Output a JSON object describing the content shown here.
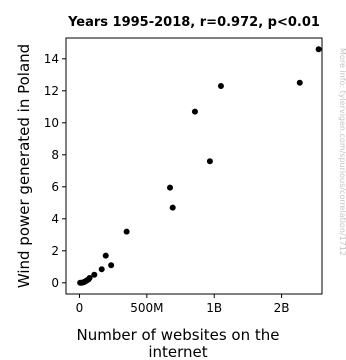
{
  "chart_data": {
    "type": "scatter",
    "title": "Years 1995-2018, r=0.972, p<0.01",
    "xlabel_lines": [
      "Number of websites on the",
      "internet"
    ],
    "ylabel": "Wind power generated in Poland",
    "watermark": "More info: tylervigen.com/spurious/correlation/1712",
    "xlim": [
      -100000000,
      1800000000
    ],
    "ylim": [
      -0.7,
      15.3
    ],
    "x_ticks": [
      {
        "value": 0,
        "label": "0"
      },
      {
        "value": 500000000,
        "label": "500M"
      },
      {
        "value": 1000000000,
        "label": "1B"
      },
      {
        "value": 1500000000,
        "label": "2B"
      }
    ],
    "y_ticks": [
      {
        "value": 0,
        "label": "0"
      },
      {
        "value": 2,
        "label": "2"
      },
      {
        "value": 4,
        "label": "4"
      },
      {
        "value": 6,
        "label": "6"
      },
      {
        "value": 8,
        "label": "8"
      },
      {
        "value": 10,
        "label": "10"
      },
      {
        "value": 12,
        "label": "12"
      },
      {
        "value": 14,
        "label": "14"
      }
    ],
    "points": [
      {
        "x": 5000000,
        "y": 0.0
      },
      {
        "x": 15000000,
        "y": 0.0
      },
      {
        "x": 25000000,
        "y": 0.02
      },
      {
        "x": 35000000,
        "y": 0.05
      },
      {
        "x": 45000000,
        "y": 0.1
      },
      {
        "x": 55000000,
        "y": 0.15
      },
      {
        "x": 65000000,
        "y": 0.2
      },
      {
        "x": 75000000,
        "y": 0.3
      },
      {
        "x": 110000000,
        "y": 0.5
      },
      {
        "x": 165000000,
        "y": 0.85
      },
      {
        "x": 195000000,
        "y": 1.7
      },
      {
        "x": 235000000,
        "y": 1.1
      },
      {
        "x": 350000000,
        "y": 3.2
      },
      {
        "x": 672000000,
        "y": 5.95
      },
      {
        "x": 692000000,
        "y": 4.7
      },
      {
        "x": 857000000,
        "y": 10.7
      },
      {
        "x": 968000000,
        "y": 7.6
      },
      {
        "x": 1050000000,
        "y": 12.3
      },
      {
        "x": 1635000000,
        "y": 12.5
      },
      {
        "x": 1775000000,
        "y": 14.6
      }
    ]
  }
}
